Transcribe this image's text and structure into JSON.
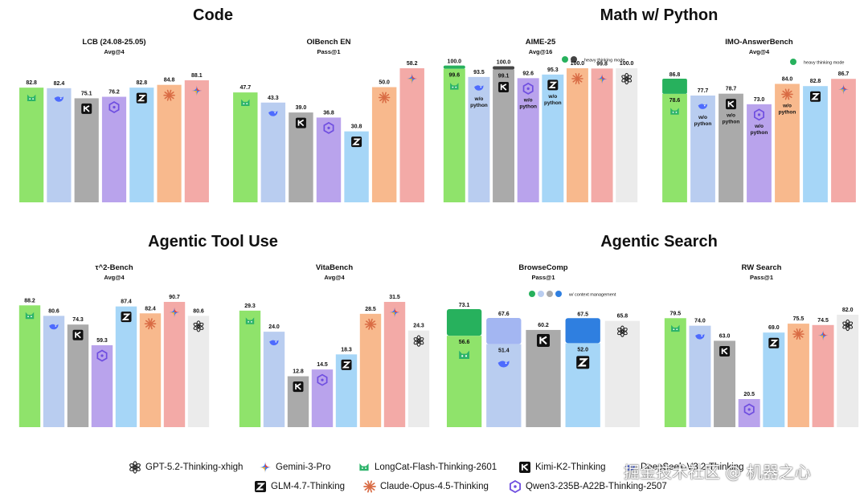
{
  "sections": {
    "code": "Code",
    "math": "Math w/ Python",
    "tool": "Agentic Tool Use",
    "search": "Agentic Search"
  },
  "colors": {
    "longcat": "#8fe36b",
    "deepseek": "#b9cdf0",
    "kimi": "#aaaaaa",
    "qwen": "#b9a3ec",
    "glm": "#a6d6f7",
    "claude": "#f8b98d",
    "gemini": "#f3aaa7",
    "gpt": "#ebebeb"
  },
  "chart_data": [
    {
      "type": "bar",
      "title": "LCB (24.08-25.05)",
      "subtitle": "Avg@4",
      "bars": [
        {
          "model": "longcat",
          "value": 82.8
        },
        {
          "model": "deepseek",
          "value": 82.4
        },
        {
          "model": "kimi",
          "value": 75.1
        },
        {
          "model": "qwen",
          "value": 76.2
        },
        {
          "model": "glm",
          "value": 82.8
        },
        {
          "model": "claude",
          "value": 84.8
        },
        {
          "model": "gemini",
          "value": 88.1
        }
      ]
    },
    {
      "type": "bar",
      "title": "OIBench EN",
      "subtitle": "Pass@1",
      "bars": [
        {
          "model": "longcat",
          "value": 47.7
        },
        {
          "model": "deepseek",
          "value": 43.3
        },
        {
          "model": "kimi",
          "value": 39.0
        },
        {
          "model": "qwen",
          "value": 36.8
        },
        {
          "model": "glm",
          "value": 30.8
        },
        {
          "model": "claude",
          "value": 50.0
        },
        {
          "model": "gemini",
          "value": 58.2
        }
      ]
    },
    {
      "type": "bar",
      "title": "AIME-25",
      "subtitle": "Avg@16",
      "legend_note": "heavy thinking mode",
      "bars": [
        {
          "model": "longcat",
          "value": 99.6,
          "heavy": 100.0
        },
        {
          "model": "deepseek",
          "value": 93.5,
          "note": "w/o python"
        },
        {
          "model": "kimi",
          "value": 99.1,
          "heavy": 100.0
        },
        {
          "model": "qwen",
          "value": 92.6,
          "note": "w/o python"
        },
        {
          "model": "glm",
          "value": 95.3,
          "note": "w/o python"
        },
        {
          "model": "claude",
          "value": 100.0
        },
        {
          "model": "gemini",
          "value": 99.8
        },
        {
          "model": "gpt",
          "value": 100.0
        }
      ]
    },
    {
      "type": "bar",
      "title": "IMO-AnswerBench",
      "subtitle": "Avg@4",
      "legend_note": "heavy thinking mode",
      "bars": [
        {
          "model": "longcat",
          "value": 78.6,
          "heavy": 86.8
        },
        {
          "model": "deepseek",
          "value": 77.7,
          "note": "w/o python"
        },
        {
          "model": "kimi",
          "value": 78.7,
          "note": "w/o python"
        },
        {
          "model": "qwen",
          "value": 73.0,
          "note": "w/o python"
        },
        {
          "model": "claude",
          "value": 84.0,
          "note": "w/o python"
        },
        {
          "model": "glm",
          "value": 82.8
        },
        {
          "model": "gemini",
          "value": 86.7
        }
      ]
    },
    {
      "type": "bar",
      "title": "τ^2-Bench",
      "subtitle": "Avg@4",
      "bars": [
        {
          "model": "longcat",
          "value": 88.2
        },
        {
          "model": "deepseek",
          "value": 80.6
        },
        {
          "model": "kimi",
          "value": 74.3
        },
        {
          "model": "qwen",
          "value": 59.3
        },
        {
          "model": "glm",
          "value": 87.4
        },
        {
          "model": "claude",
          "value": 82.4
        },
        {
          "model": "gemini",
          "value": 90.7
        },
        {
          "model": "gpt",
          "value": 80.6
        }
      ]
    },
    {
      "type": "bar",
      "title": "VitaBench",
      "subtitle": "Avg@4",
      "bars": [
        {
          "model": "longcat",
          "value": 29.3
        },
        {
          "model": "deepseek",
          "value": 24.0
        },
        {
          "model": "kimi",
          "value": 12.8
        },
        {
          "model": "qwen",
          "value": 14.5
        },
        {
          "model": "glm",
          "value": 18.3
        },
        {
          "model": "claude",
          "value": 28.5
        },
        {
          "model": "gemini",
          "value": 31.5
        },
        {
          "model": "gpt",
          "value": 24.3
        }
      ]
    },
    {
      "type": "bar",
      "title": "BrowseComp",
      "subtitle": "Pass@1",
      "legend_note": "w/ context management",
      "bars": [
        {
          "model": "longcat",
          "value": 56.6,
          "ctx": 73.1
        },
        {
          "model": "deepseek",
          "value": 51.4,
          "ctx": 67.6
        },
        {
          "model": "kimi",
          "value": 60.2
        },
        {
          "model": "glm",
          "value": 52.0,
          "ctx": 67.5
        },
        {
          "model": "gpt",
          "value": 65.8
        }
      ]
    },
    {
      "type": "bar",
      "title": "RW Search",
      "subtitle": "Pass@1",
      "bars": [
        {
          "model": "longcat",
          "value": 79.5
        },
        {
          "model": "deepseek",
          "value": 74.0
        },
        {
          "model": "kimi",
          "value": 63.0
        },
        {
          "model": "qwen",
          "value": 20.5
        },
        {
          "model": "glm",
          "value": 69.0
        },
        {
          "model": "claude",
          "value": 75.5
        },
        {
          "model": "gemini",
          "value": 74.5
        },
        {
          "model": "gpt",
          "value": 82.0
        }
      ]
    }
  ],
  "legend": [
    {
      "model": "gpt",
      "label": "GPT-5.2-Thinking-xhigh"
    },
    {
      "model": "gemini",
      "label": "Gemini-3-Pro"
    },
    {
      "model": "longcat",
      "label": "LongCat-Flash-Thinking-2601"
    },
    {
      "model": "kimi",
      "label": "Kimi-K2-Thinking"
    },
    {
      "model": "deepseek",
      "label": "DeepSeek-V3.2-Thinking"
    },
    {
      "model": "glm",
      "label": "GLM-4.7-Thinking"
    },
    {
      "model": "claude",
      "label": "Claude-Opus-4.5-Thinking"
    },
    {
      "model": "qwen",
      "label": "Qwen3-235B-A22B-Thinking-2507"
    }
  ],
  "watermark": "掘金技术社区 @ 机器之心"
}
